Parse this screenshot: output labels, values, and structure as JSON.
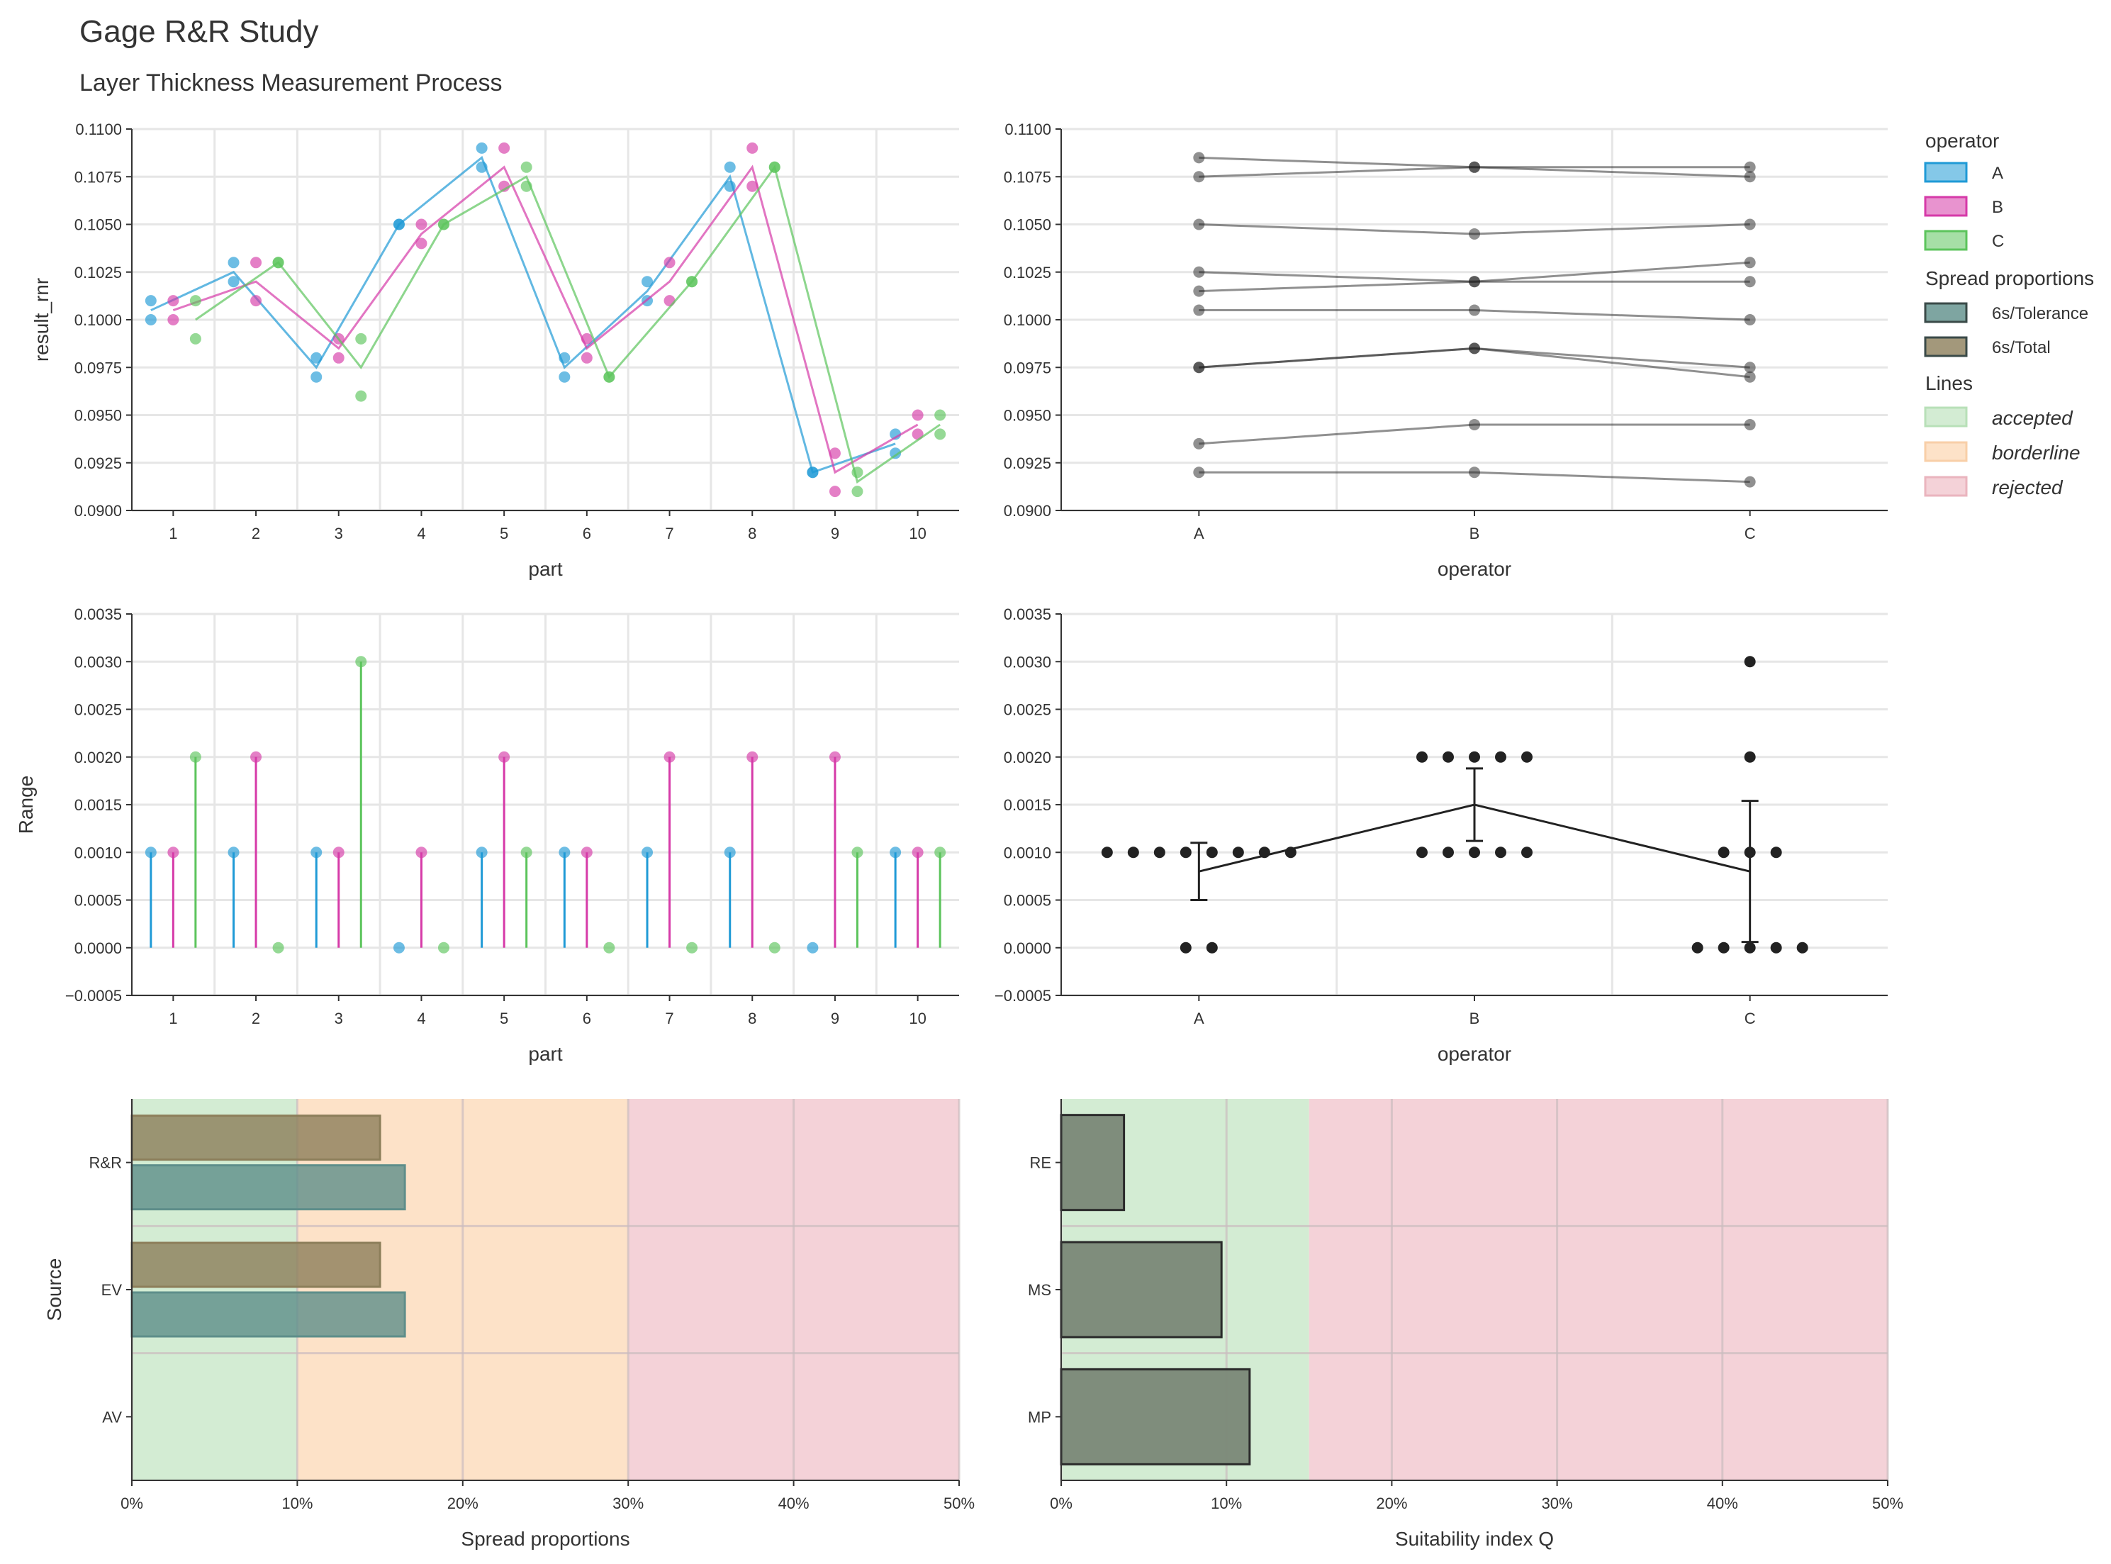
{
  "title": "Gage R&R Study",
  "subtitle": "Layer Thickness Measurement Process",
  "colors": {
    "A": "#1f9ad6",
    "B": "#d63aa8",
    "C": "#5cc45c",
    "tolerance": "#5e8e8a",
    "total": "#8c7e5a",
    "accepted": "#d3ecd3",
    "borderline": "#fde2c8",
    "rejected": "#f4d2d8",
    "dark": "#222222",
    "grid": "#e6e6e6"
  },
  "legend": {
    "operator_title": "operator",
    "operators": [
      "A",
      "B",
      "C"
    ],
    "spread_title": "Spread proportions",
    "spread_items": [
      "6s/Tolerance",
      "6s/Total"
    ],
    "lines_title": "Lines",
    "lines_items": [
      "accepted",
      "borderline",
      "rejected"
    ]
  },
  "chart_data": [
    {
      "id": "parts-individuals",
      "type": "line",
      "xlabel": "part",
      "ylabel": "result_rnr",
      "categories": [
        "1",
        "2",
        "3",
        "4",
        "5",
        "6",
        "7",
        "8",
        "9",
        "10"
      ],
      "ylim": [
        0.09,
        0.11
      ],
      "yticks": [
        0.09,
        0.0925,
        0.095,
        0.0975,
        0.1,
        0.1025,
        0.105,
        0.1075,
        0.11
      ],
      "series": [
        {
          "name": "A",
          "values": [
            [
              0.101,
              0.1
            ],
            [
              0.103,
              0.102
            ],
            [
              0.098,
              0.097
            ],
            [
              0.105,
              0.105
            ],
            [
              0.109,
              0.108
            ],
            [
              0.098,
              0.097
            ],
            [
              0.102,
              0.101
            ],
            [
              0.108,
              0.107
            ],
            [
              0.092,
              0.092
            ],
            [
              0.094,
              0.093
            ]
          ]
        },
        {
          "name": "B",
          "values": [
            [
              0.101,
              0.1
            ],
            [
              0.103,
              0.101
            ],
            [
              0.099,
              0.098
            ],
            [
              0.105,
              0.104
            ],
            [
              0.109,
              0.107
            ],
            [
              0.099,
              0.098
            ],
            [
              0.103,
              0.101
            ],
            [
              0.109,
              0.107
            ],
            [
              0.093,
              0.091
            ],
            [
              0.095,
              0.094
            ]
          ]
        },
        {
          "name": "C",
          "values": [
            [
              0.101,
              0.099
            ],
            [
              0.103,
              0.103
            ],
            [
              0.099,
              0.096
            ],
            [
              0.105,
              0.105
            ],
            [
              0.108,
              0.107
            ],
            [
              0.097,
              0.097
            ],
            [
              0.102,
              0.102
            ],
            [
              0.108,
              0.108
            ],
            [
              0.092,
              0.091
            ],
            [
              0.095,
              0.094
            ]
          ]
        }
      ]
    },
    {
      "id": "operator-means",
      "type": "line",
      "xlabel": "operator",
      "ylabel": "",
      "categories": [
        "A",
        "B",
        "C"
      ],
      "ylim": [
        0.09,
        0.11
      ],
      "yticks": [
        0.09,
        0.0925,
        0.095,
        0.0975,
        0.1,
        0.1025,
        0.105,
        0.1075,
        0.11
      ],
      "lines": [
        [
          0.1085,
          0.108,
          0.1075
        ],
        [
          0.1075,
          0.108,
          0.108
        ],
        [
          0.105,
          0.1045,
          0.105
        ],
        [
          0.1025,
          0.102,
          0.103
        ],
        [
          0.1015,
          0.102,
          0.102
        ],
        [
          0.1005,
          0.1005,
          0.1
        ],
        [
          0.0975,
          0.0985,
          0.0975
        ],
        [
          0.0975,
          0.0985,
          0.097
        ],
        [
          0.0935,
          0.0945,
          0.0945
        ],
        [
          0.092,
          0.092,
          0.0915
        ]
      ]
    },
    {
      "id": "parts-range",
      "type": "bar",
      "xlabel": "part",
      "ylabel": "Range",
      "categories": [
        "1",
        "2",
        "3",
        "4",
        "5",
        "6",
        "7",
        "8",
        "9",
        "10"
      ],
      "ylim": [
        -0.0005,
        0.0035
      ],
      "yticks": [
        -0.0005,
        0,
        0.0005,
        0.001,
        0.0015,
        0.002,
        0.0025,
        0.003,
        0.0035
      ],
      "series": [
        {
          "name": "A",
          "values": [
            0.001,
            0.001,
            0.001,
            0,
            0.001,
            0.001,
            0.001,
            0.001,
            0,
            0.001
          ]
        },
        {
          "name": "B",
          "values": [
            0.001,
            0.002,
            0.001,
            0.001,
            0.002,
            0.001,
            0.002,
            0.002,
            0.002,
            0.001
          ]
        },
        {
          "name": "C",
          "values": [
            0.002,
            0,
            0.003,
            0,
            0.001,
            0,
            0,
            0,
            0.001,
            0.001
          ]
        }
      ]
    },
    {
      "id": "operator-range",
      "type": "scatter",
      "xlabel": "operator",
      "ylabel": "",
      "categories": [
        "A",
        "B",
        "C"
      ],
      "ylim": [
        -0.0005,
        0.0035
      ],
      "yticks": [
        -0.0005,
        0,
        0.0005,
        0.001,
        0.0015,
        0.002,
        0.0025,
        0.003,
        0.0035
      ],
      "means": [
        0.0008,
        0.0015,
        0.0008
      ],
      "error_low": [
        0.0005,
        0.00112,
        6e-05
      ],
      "error_high": [
        0.0011,
        0.00188,
        0.00154
      ],
      "points": [
        [
          0.001,
          0.001,
          0.001,
          0.001,
          0.001,
          0.001,
          0.001,
          0.001,
          0,
          0
        ],
        [
          0.002,
          0.002,
          0.002,
          0.002,
          0.002,
          0.001,
          0.001,
          0.001,
          0.001,
          0.001
        ],
        [
          0.003,
          0.002,
          0.001,
          0.001,
          0.001,
          0,
          0,
          0,
          0,
          0
        ]
      ]
    },
    {
      "id": "spread-proportions",
      "type": "bar",
      "orientation": "horizontal",
      "xlabel": "Spread proportions",
      "ylabel": "Source",
      "categories": [
        "R&R",
        "EV",
        "AV"
      ],
      "xlim": [
        0,
        0.5
      ],
      "xticks": [
        "0%",
        "10%",
        "20%",
        "30%",
        "40%",
        "50%"
      ],
      "zones": [
        0.1,
        0.3
      ],
      "series": [
        {
          "name": "6s/Total",
          "values": [
            0.15,
            0.15,
            0
          ]
        },
        {
          "name": "6s/Tolerance",
          "values": [
            0.165,
            0.165,
            0
          ]
        }
      ]
    },
    {
      "id": "suitability",
      "type": "bar",
      "orientation": "horizontal",
      "xlabel": "Suitability index Q",
      "ylabel": "",
      "categories": [
        "RE",
        "MS",
        "MP"
      ],
      "xlim": [
        0,
        0.5
      ],
      "xticks": [
        "0%",
        "10%",
        "20%",
        "30%",
        "40%",
        "50%"
      ],
      "zones": [
        0.15
      ],
      "values": [
        0.038,
        0.097,
        0.114
      ]
    }
  ]
}
